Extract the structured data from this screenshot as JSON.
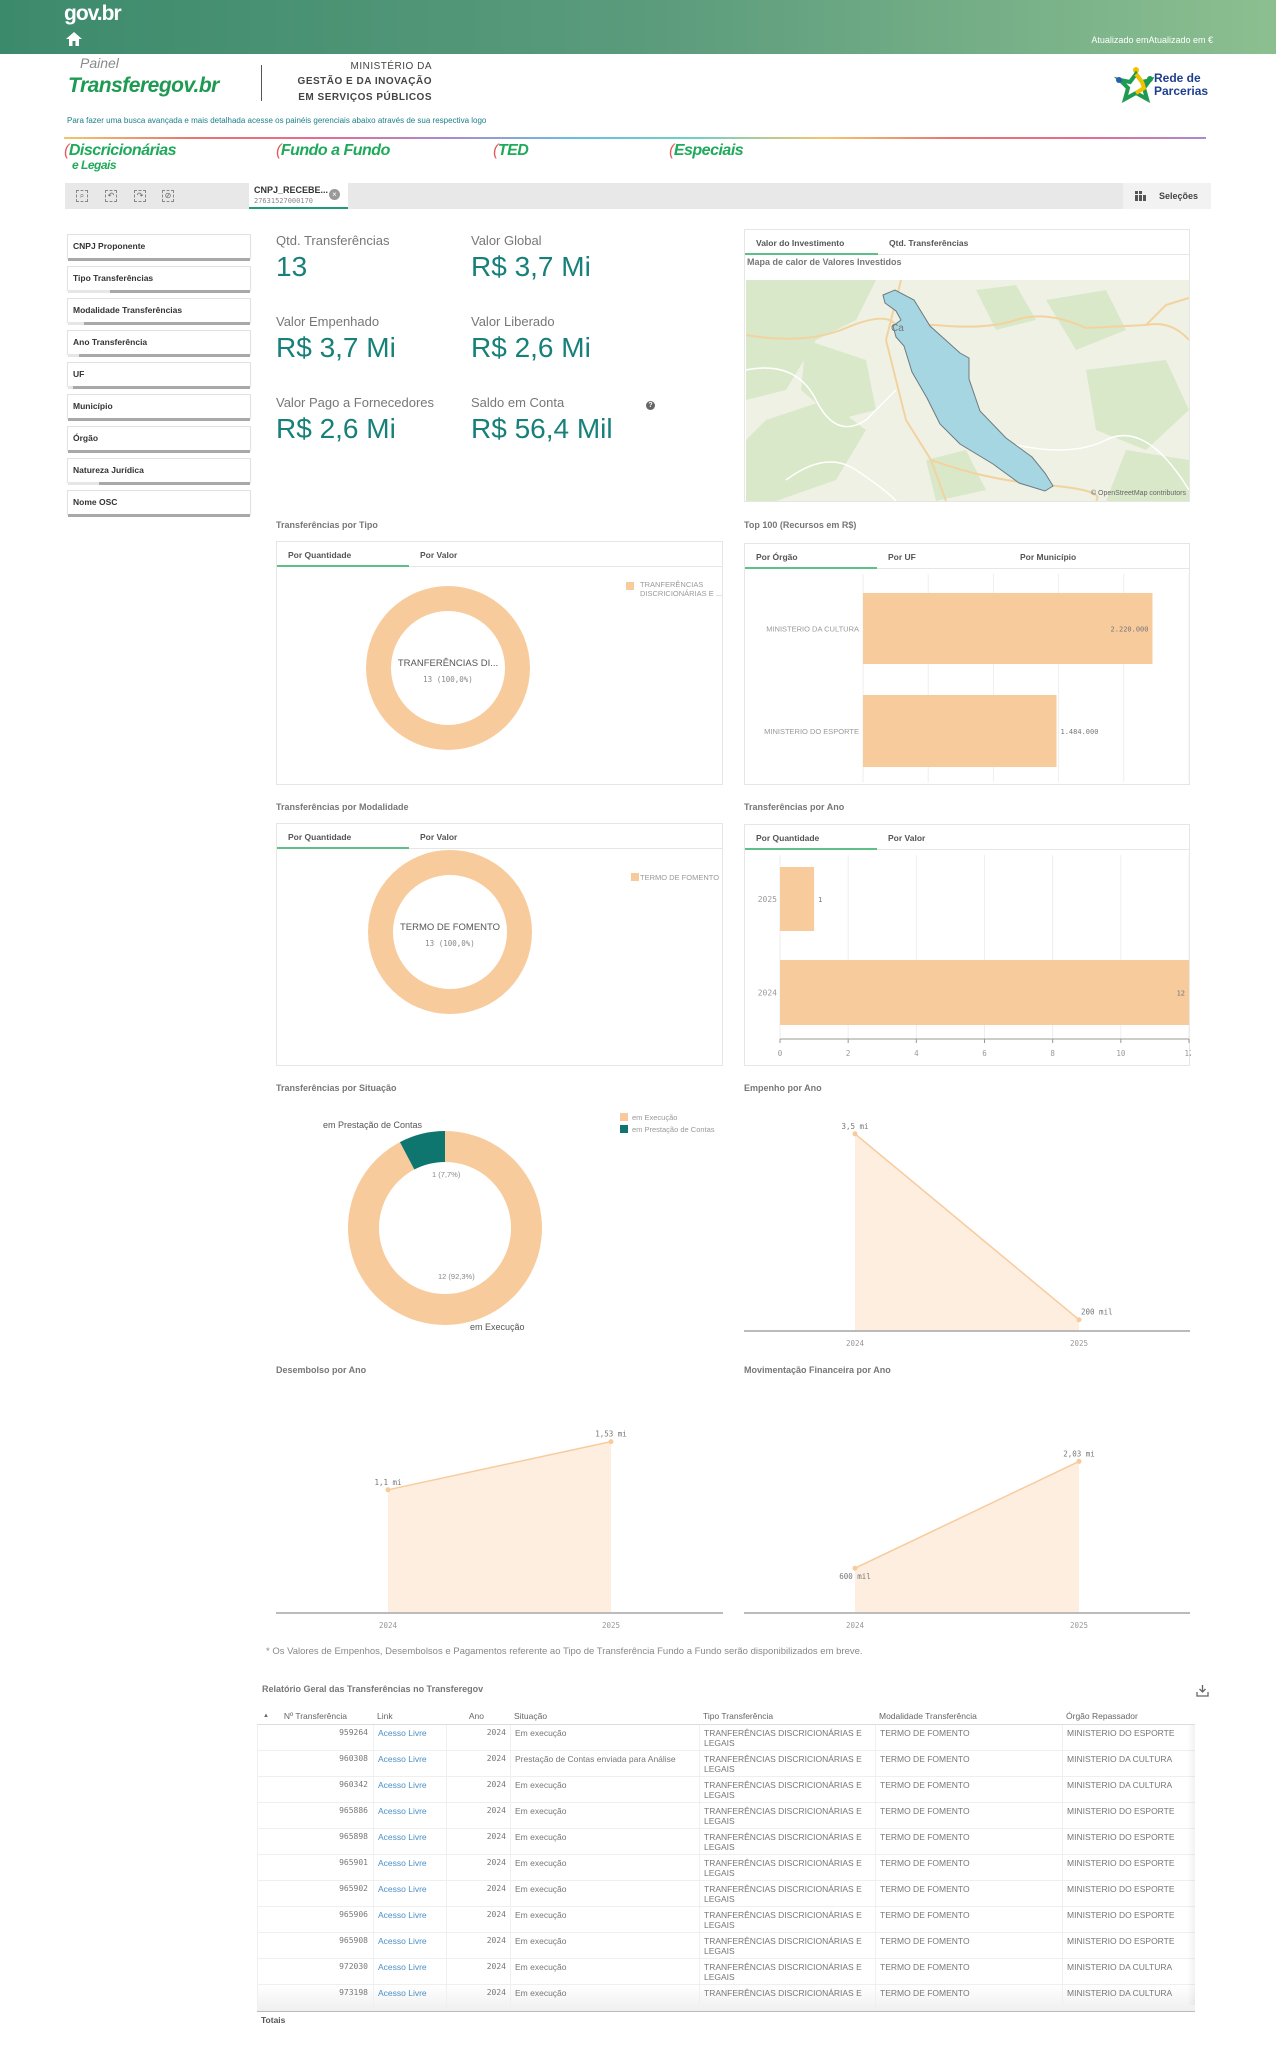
{
  "header": {
    "brand": "gov.br",
    "updated": "Atualizado emAtualizado em €"
  },
  "logo": {
    "painel": "Painel",
    "name": "Transferegov.br",
    "ministry": [
      "MINISTÉRIO DA",
      "GESTÃO E DA INOVAÇÃO",
      "EM SERVIÇOS PÚBLICOS"
    ],
    "rede": [
      "Rede de",
      "Parcerias"
    ],
    "subtitle": "Para fazer uma busca avançada e mais detalhada acesse os painéis gerenciais abaixo através de sua respectiva logo"
  },
  "nav": [
    {
      "label": "Discricionárias",
      "sub": "e Legais"
    },
    {
      "label": "Fundo a Fundo",
      "sub": ""
    },
    {
      "label": "TED",
      "sub": ""
    },
    {
      "label": "Especiais",
      "sub": ""
    }
  ],
  "selections": {
    "chip_field": "CNPJ_RECEBE...",
    "chip_value": "27631527000170",
    "button": "Seleções"
  },
  "filters": [
    {
      "label": "CNPJ Proponente",
      "selected_frac": 0
    },
    {
      "label": "Tipo Transferências",
      "selected_frac": 0.23
    },
    {
      "label": "Modalidade Transferências",
      "selected_frac": 0.09
    },
    {
      "label": "Ano Transferência",
      "selected_frac": 0.06
    },
    {
      "label": "UF",
      "selected_frac": 0.03
    },
    {
      "label": "Município",
      "selected_frac": 0
    },
    {
      "label": "Órgão",
      "selected_frac": 0
    },
    {
      "label": "Natureza Jurídica",
      "selected_frac": 0.17
    },
    {
      "label": "Nome OSC",
      "selected_frac": 0
    }
  ],
  "kpis": [
    {
      "label": "Qtd. Transferências",
      "value": "13"
    },
    {
      "label": "Valor Global",
      "value": "R$ 3,7 Mi"
    },
    {
      "label": "Valor Empenhado",
      "value": "R$ 3,7 Mi"
    },
    {
      "label": "Valor Liberado",
      "value": "R$ 2,6 Mi"
    },
    {
      "label": "Valor Pago a Fornecedores",
      "value": "R$ 2,6 Mi"
    },
    {
      "label": "Saldo em Conta",
      "value": "R$ 56,4 Mil"
    }
  ],
  "map": {
    "tabs": [
      "Valor do Investimento",
      "Qtd. Transferências"
    ],
    "title": "Mapa de calor de Valores Investidos",
    "place_label": "Ca",
    "attribution": "© OpenStreetMap contributors"
  },
  "colors": {
    "peach": "#f8cb9d",
    "teal": "#0e766e",
    "kpi": "#17807a",
    "area": "#fdeee0"
  },
  "sections": {
    "tipo": {
      "title": "Transferências por Tipo",
      "tabs": [
        "Por Quantidade",
        "Por Valor"
      ]
    },
    "top100": {
      "title": "Top 100 (Recursos em R$)",
      "tabs": [
        "Por Órgão",
        "Por UF",
        "Por Município"
      ]
    },
    "modalidade": {
      "title": "Transferências por Modalidade",
      "tabs": [
        "Por Quantidade",
        "Por Valor"
      ]
    },
    "ano": {
      "title": "Transferências por Ano",
      "tabs": [
        "Por Quantidade",
        "Por Valor"
      ]
    },
    "situacao": {
      "title": "Transferências por Situação"
    },
    "empenho": {
      "title": "Empenho por Ano"
    },
    "desembolso": {
      "title": "Desembolso por Ano"
    },
    "movimentacao": {
      "title": "Movimentação Financeira por Ano"
    }
  },
  "chart_data": [
    {
      "id": "tipo",
      "type": "pie",
      "slices": [
        {
          "label": "TRANFERÊNCIAS DISCRICIONÁRIAS E LEGAIS",
          "value": 13
        }
      ],
      "center_label": "TRANFERÊNCIAS DI...",
      "center_value": "13 (100,0%)",
      "legend": [
        "TRANFERÊNCIAS",
        "DISCRICIONÁRIAS E ..."
      ]
    },
    {
      "id": "modalidade",
      "type": "pie",
      "slices": [
        {
          "label": "TERMO DE FOMENTO",
          "value": 13
        }
      ],
      "center_label": "TERMO DE FOMENTO",
      "center_value": "13 (100,0%)",
      "legend": [
        "TERMO DE FOMENTO"
      ]
    },
    {
      "id": "top100",
      "type": "bar",
      "orientation": "horizontal",
      "categories": [
        "MINISTERIO DA CULTURA",
        "MINISTERIO DO ESPORTE"
      ],
      "values": [
        2220000,
        1484000
      ],
      "labels": [
        "2.220.000",
        "1.484.000"
      ],
      "xlim": [
        0,
        2500000
      ]
    },
    {
      "id": "ano",
      "type": "bar",
      "orientation": "horizontal",
      "categories": [
        "2025",
        "2024"
      ],
      "values": [
        1,
        12
      ],
      "labels": [
        "1",
        "12"
      ],
      "xlim": [
        0,
        12
      ],
      "ticks": [
        "0",
        "2",
        "4",
        "6",
        "8",
        "10",
        "12"
      ]
    },
    {
      "id": "situacao",
      "type": "pie",
      "slices": [
        {
          "label": "em Execução",
          "value": 12,
          "pct": "12 (92,3%)"
        },
        {
          "label": "em Prestação de Contas",
          "value": 1,
          "pct": "1 (7,7%)"
        }
      ],
      "legend": [
        "em Execução",
        "em Prestação de Contas"
      ]
    },
    {
      "id": "empenho",
      "type": "area",
      "x": [
        "2024",
        "2025"
      ],
      "y": [
        3.5,
        0.2
      ],
      "labels": [
        "3,5 mi",
        "200 mil"
      ],
      "ylim": [
        0,
        4.1
      ]
    },
    {
      "id": "desembolso",
      "type": "area",
      "x": [
        "2024",
        "2025"
      ],
      "y": [
        1.1,
        1.53
      ],
      "labels": [
        "1,1 mi",
        "1,53 mi"
      ],
      "ylim": [
        0,
        2.0
      ]
    },
    {
      "id": "movimentacao",
      "type": "area",
      "x": [
        "2024",
        "2025"
      ],
      "y": [
        0.6,
        2.03
      ],
      "labels": [
        "600 mil",
        "2,03 mi"
      ],
      "ylim": [
        0,
        3.0
      ]
    }
  ],
  "footnote": "* Os Valores de Empenhos, Desembolsos e Pagamentos referente ao Tipo de Transferência Fundo a Fundo serão disponibilizados em breve.",
  "report": {
    "title": "Relatório Geral das Transferências no Transferegov",
    "columns": [
      "Nº Transferência",
      "Link",
      "Ano",
      "Situação",
      "Tipo Transferência",
      "Modalidade Transferência",
      "Órgão Repassador"
    ],
    "rows": [
      [
        "959264",
        "Acesso Livre",
        "2024",
        "Em execução",
        "TRANFERÊNCIAS DISCRICIONÁRIAS E LEGAIS",
        "TERMO DE FOMENTO",
        "MINISTERIO DO ESPORTE"
      ],
      [
        "960308",
        "Acesso Livre",
        "2024",
        "Prestação de Contas enviada para Análise",
        "TRANFERÊNCIAS DISCRICIONÁRIAS E LEGAIS",
        "TERMO DE FOMENTO",
        "MINISTERIO DA CULTURA"
      ],
      [
        "960342",
        "Acesso Livre",
        "2024",
        "Em execução",
        "TRANFERÊNCIAS DISCRICIONÁRIAS E LEGAIS",
        "TERMO DE FOMENTO",
        "MINISTERIO DA CULTURA"
      ],
      [
        "965886",
        "Acesso Livre",
        "2024",
        "Em execução",
        "TRANFERÊNCIAS DISCRICIONÁRIAS E LEGAIS",
        "TERMO DE FOMENTO",
        "MINISTERIO DO ESPORTE"
      ],
      [
        "965898",
        "Acesso Livre",
        "2024",
        "Em execução",
        "TRANFERÊNCIAS DISCRICIONÁRIAS E LEGAIS",
        "TERMO DE FOMENTO",
        "MINISTERIO DO ESPORTE"
      ],
      [
        "965901",
        "Acesso Livre",
        "2024",
        "Em execução",
        "TRANFERÊNCIAS DISCRICIONÁRIAS E LEGAIS",
        "TERMO DE FOMENTO",
        "MINISTERIO DO ESPORTE"
      ],
      [
        "965902",
        "Acesso Livre",
        "2024",
        "Em execução",
        "TRANFERÊNCIAS DISCRICIONÁRIAS E LEGAIS",
        "TERMO DE FOMENTO",
        "MINISTERIO DO ESPORTE"
      ],
      [
        "965906",
        "Acesso Livre",
        "2024",
        "Em execução",
        "TRANFERÊNCIAS DISCRICIONÁRIAS E LEGAIS",
        "TERMO DE FOMENTO",
        "MINISTERIO DO ESPORTE"
      ],
      [
        "965908",
        "Acesso Livre",
        "2024",
        "Em execução",
        "TRANFERÊNCIAS DISCRICIONÁRIAS E LEGAIS",
        "TERMO DE FOMENTO",
        "MINISTERIO DO ESPORTE"
      ],
      [
        "972030",
        "Acesso Livre",
        "2024",
        "Em execução",
        "TRANFERÊNCIAS DISCRICIONÁRIAS E LEGAIS",
        "TERMO DE FOMENTO",
        "MINISTERIO DA CULTURA"
      ],
      [
        "973198",
        "Acesso Livre",
        "2024",
        "Em execução",
        "TRANFERÊNCIAS DISCRICIONÁRIAS E",
        "TERMO DE FOMENTO",
        "MINISTERIO DA CULTURA"
      ]
    ],
    "totals_label": "Totais"
  }
}
